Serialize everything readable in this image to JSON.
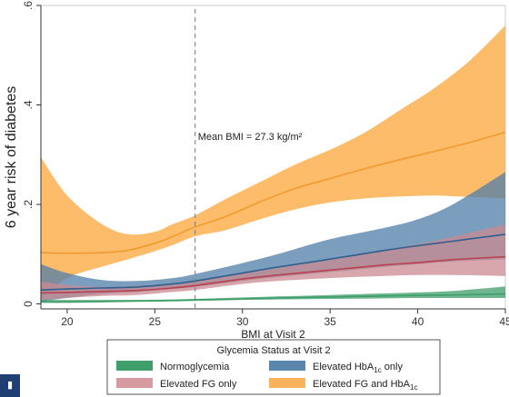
{
  "chart_data": {
    "type": "line",
    "title": "",
    "xlabel": "BMI at Visit 2",
    "ylabel": "6 year risk of diabetes",
    "xlim": [
      18.5,
      45
    ],
    "ylim": [
      -0.01,
      0.6
    ],
    "xticks": [
      20,
      25,
      30,
      35,
      40,
      45
    ],
    "yticks": [
      0,
      0.2,
      0.4,
      0.6
    ],
    "xtick_labels": [
      "20",
      "25",
      "30",
      "35",
      "40",
      "45"
    ],
    "ytick_labels": [
      "0",
      ".2",
      ".4",
      ".6"
    ],
    "grid": false,
    "legend_position": "bottom",
    "legend_title": "Glycemia Status at Visit 2",
    "reference_line": {
      "x": 27.3,
      "label": "Mean BMI = 27.3 kg/m²"
    },
    "series": [
      {
        "name": "Normoglycemia",
        "color": "#3f9e6a",
        "band_color": "#3f9e6a",
        "x": [
          18.5,
          20,
          22,
          24,
          26,
          27.3,
          30,
          32,
          35,
          38,
          40,
          42,
          45
        ],
        "y": [
          0.004,
          0.004,
          0.005,
          0.006,
          0.007,
          0.008,
          0.01,
          0.012,
          0.014,
          0.016,
          0.017,
          0.018,
          0.02
        ],
        "lower": [
          0.002,
          0.002,
          0.003,
          0.004,
          0.005,
          0.006,
          0.008,
          0.009,
          0.01,
          0.011,
          0.012,
          0.012,
          0.012
        ],
        "upper": [
          0.008,
          0.008,
          0.008,
          0.008,
          0.009,
          0.01,
          0.013,
          0.015,
          0.018,
          0.021,
          0.023,
          0.026,
          0.035
        ]
      },
      {
        "name": "Elevated HbA1c only",
        "color": "#2f5f8f",
        "band_color": "#4f7ea8",
        "x": [
          18.5,
          20,
          22,
          24,
          26,
          27.3,
          30,
          32,
          35,
          38,
          40,
          42,
          45
        ],
        "y": [
          0.028,
          0.03,
          0.032,
          0.034,
          0.04,
          0.046,
          0.062,
          0.074,
          0.09,
          0.107,
          0.117,
          0.126,
          0.14
        ],
        "lower": [
          0.005,
          0.012,
          0.02,
          0.024,
          0.03,
          0.034,
          0.046,
          0.054,
          0.064,
          0.074,
          0.08,
          0.085,
          0.09
        ],
        "upper": [
          0.08,
          0.062,
          0.048,
          0.046,
          0.052,
          0.06,
          0.082,
          0.1,
          0.13,
          0.152,
          0.17,
          0.2,
          0.265
        ]
      },
      {
        "name": "Elevated FG only",
        "color": "#b8404f",
        "band_color": "#c98a92",
        "x": [
          18.5,
          20,
          22,
          24,
          26,
          27.3,
          30,
          32,
          35,
          38,
          40,
          42,
          45
        ],
        "y": [
          0.022,
          0.023,
          0.025,
          0.027,
          0.032,
          0.037,
          0.05,
          0.058,
          0.068,
          0.078,
          0.083,
          0.089,
          0.095
        ],
        "lower": [
          0.008,
          0.012,
          0.016,
          0.018,
          0.024,
          0.028,
          0.04,
          0.046,
          0.052,
          0.056,
          0.058,
          0.058,
          0.056
        ],
        "upper": [
          0.045,
          0.038,
          0.034,
          0.036,
          0.04,
          0.046,
          0.062,
          0.072,
          0.09,
          0.108,
          0.12,
          0.135,
          0.16
        ]
      },
      {
        "name": "Elevated FG and HbA1c",
        "color": "#f29a2e",
        "band_color": "#fbb04f",
        "x": [
          18.5,
          20,
          22,
          23.5,
          25,
          26,
          27.3,
          29,
          31,
          33,
          35,
          37,
          39,
          41,
          43,
          45
        ],
        "y": [
          0.103,
          0.102,
          0.103,
          0.108,
          0.122,
          0.135,
          0.155,
          0.175,
          0.205,
          0.232,
          0.252,
          0.272,
          0.29,
          0.307,
          0.325,
          0.345
        ],
        "lower": [
          0.01,
          0.052,
          0.075,
          0.09,
          0.106,
          0.118,
          0.136,
          0.148,
          0.17,
          0.19,
          0.204,
          0.212,
          0.216,
          0.218,
          0.215,
          0.212
        ],
        "upper": [
          0.295,
          0.218,
          0.16,
          0.14,
          0.145,
          0.16,
          0.178,
          0.21,
          0.245,
          0.28,
          0.31,
          0.345,
          0.39,
          0.435,
          0.49,
          0.56
        ]
      }
    ]
  },
  "legend": {
    "title": "Glycemia Status at Visit 2",
    "items": [
      {
        "label": "Normoglycemia",
        "color": "#3f9e6a"
      },
      {
        "label_base": "Elevated HbA",
        "label_sub": "1c",
        "label_suffix": " only",
        "color": "#5a86ad"
      },
      {
        "label": "Elevated FG only",
        "color": "#d79aa1"
      },
      {
        "label_base": "Elevated FG and HbA",
        "label_sub": "1c",
        "label_suffix": "",
        "color": "#fcb15a"
      }
    ]
  }
}
